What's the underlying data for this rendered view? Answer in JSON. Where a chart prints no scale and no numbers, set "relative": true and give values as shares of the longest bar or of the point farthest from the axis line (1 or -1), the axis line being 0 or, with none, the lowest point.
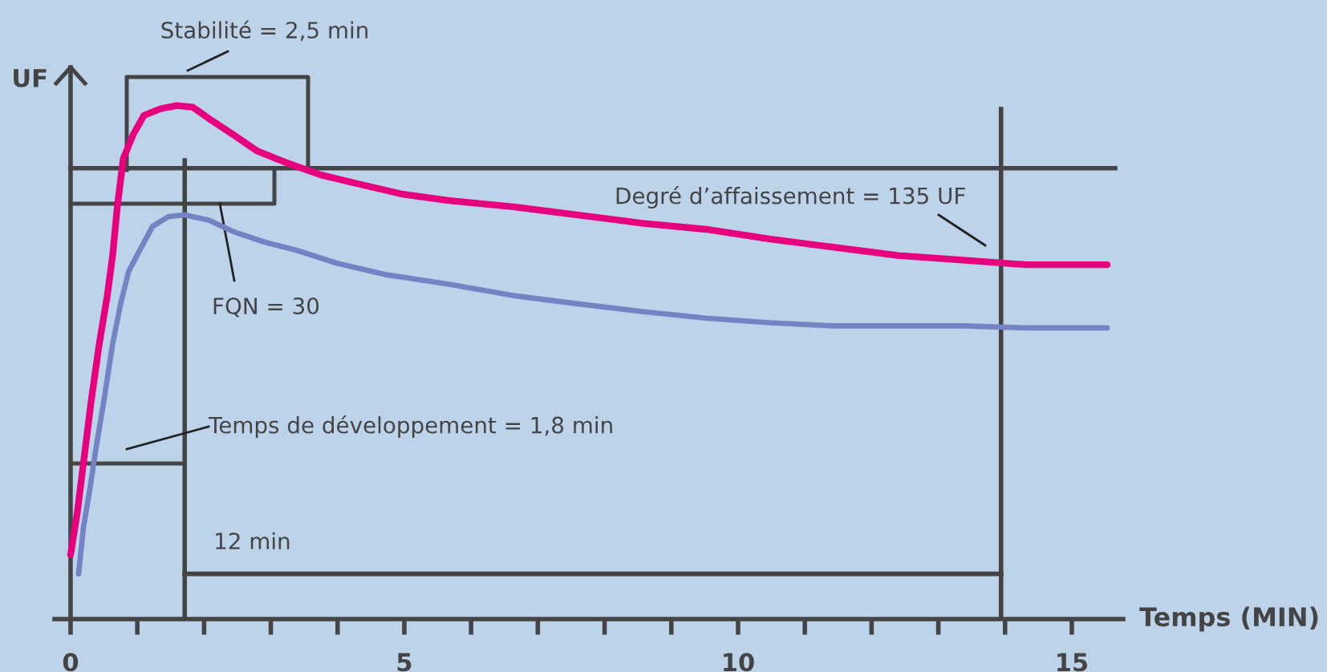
{
  "chart_data": {
    "type": "line",
    "relative": true,
    "xlabel": "Temps (MIN)",
    "ylabel": "UF",
    "xlim": [
      -0.24,
      15.77
    ],
    "xticks": [
      0,
      {
        "value": 1,
        "label": null
      },
      {
        "value": 2,
        "label": null
      },
      {
        "value": 3,
        "label": null
      },
      {
        "value": 4,
        "label": null
      },
      5,
      {
        "value": 6,
        "label": null
      },
      {
        "value": 7,
        "label": null
      },
      {
        "value": 8,
        "label": null
      },
      {
        "value": 9,
        "label": null
      },
      10,
      {
        "value": 11,
        "label": null
      },
      {
        "value": 12,
        "label": null
      },
      {
        "value": 13,
        "label": null
      },
      {
        "value": 14,
        "label": null
      },
      15
    ],
    "series": [
      {
        "color": "#e6007e",
        "x": [
          0,
          0.1,
          0.19,
          0.31,
          0.43,
          0.55,
          0.63,
          0.7,
          0.79,
          0.94,
          1.1,
          1.35,
          1.59,
          1.83,
          2.07,
          2.43,
          2.79,
          3.27,
          3.75,
          4.23,
          4.95,
          5.67,
          6.63,
          7.6,
          8.56,
          9.52,
          10.48,
          11.44,
          12.4,
          13.37,
          14.33,
          15.53
        ],
        "values": [
          0.125,
          0.207,
          0.301,
          0.426,
          0.536,
          0.63,
          0.708,
          0.803,
          0.897,
          0.944,
          0.981,
          0.994,
          1.0,
          0.997,
          0.975,
          0.944,
          0.912,
          0.887,
          0.865,
          0.85,
          0.828,
          0.815,
          0.803,
          0.787,
          0.771,
          0.759,
          0.74,
          0.724,
          0.708,
          0.699,
          0.69,
          0.69
        ]
      },
      {
        "color": "#7383c3",
        "x": [
          0.12,
          0.19,
          0.29,
          0.38,
          0.5,
          0.63,
          0.75,
          0.87,
          1.06,
          1.23,
          1.47,
          1.71,
          2.07,
          2.43,
          2.91,
          3.39,
          3.99,
          4.71,
          5.67,
          6.63,
          7.6,
          8.56,
          9.52,
          10.48,
          11.44,
          12.4,
          13.37,
          14.33,
          15.53
        ],
        "values": [
          0.088,
          0.176,
          0.254,
          0.332,
          0.426,
          0.536,
          0.614,
          0.677,
          0.724,
          0.765,
          0.784,
          0.787,
          0.777,
          0.755,
          0.734,
          0.718,
          0.693,
          0.671,
          0.652,
          0.63,
          0.614,
          0.599,
          0.586,
          0.577,
          0.571,
          0.571,
          0.571,
          0.567,
          0.567
        ]
      }
    ],
    "ref_lines": [
      {
        "axis": "y",
        "value": 0.878,
        "color": "#444444"
      },
      {
        "axis": "x",
        "value": 1.71,
        "color": "#444444"
      },
      {
        "axis": "x",
        "value": 13.94,
        "color": "#444444"
      },
      {
        "axis": "y",
        "value": 0.088,
        "color": "#444444",
        "label": "12 min"
      }
    ],
    "annotations": [
      "Stabilité = 2,5 min",
      "FQN = 30",
      "Temps de développement = 1,8 min",
      "Degré d’affaissement = 135 UF"
    ],
    "legend": false
  }
}
